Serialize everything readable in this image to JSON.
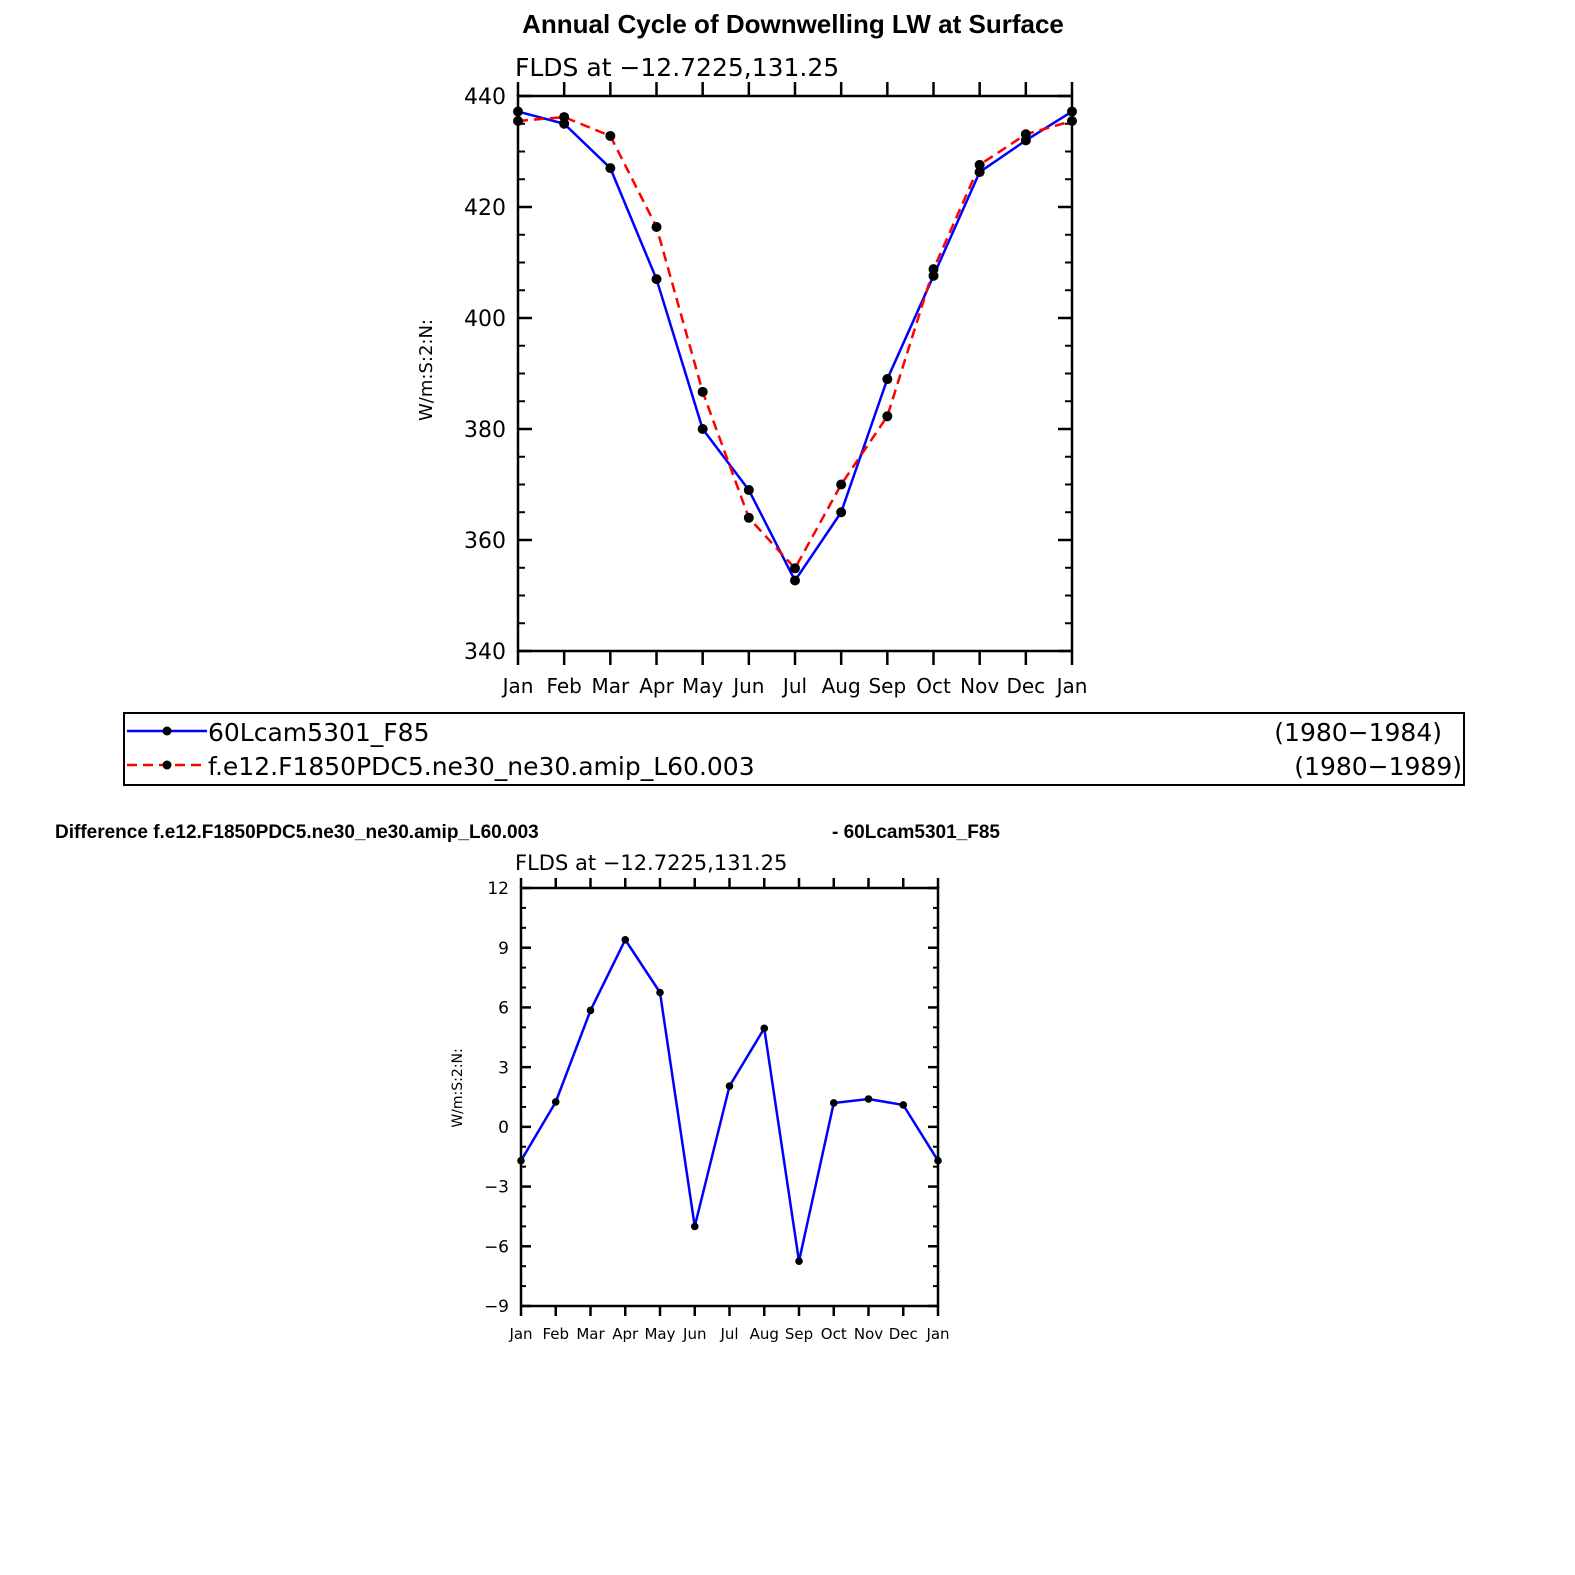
{
  "figure": {
    "title": "Annual Cycle of Downwelling LW at Surface",
    "diff_title_left": "Difference f.e12.F1850PDC5.ne30_ne30.amip_L60.003",
    "diff_title_right": "- 60Lcam5301_F85"
  },
  "legend": {
    "entries": [
      {
        "name": "60Lcam5301_F85",
        "years": "(1980−1984)",
        "color": "#0000ff",
        "style": "solid"
      },
      {
        "name": "f.e12.F1850PDC5.ne30_ne30.amip_L60.003",
        "years": "(1980−1989)",
        "color": "#ff0000",
        "style": "dashed"
      }
    ]
  },
  "chart_data": [
    {
      "type": "line",
      "title": "Annual Cycle of Downwelling LW at Surface",
      "subtitle": "FLDS at −12.7225,131.25",
      "xlabel": "",
      "ylabel": "W/m:S:2:N:",
      "categories": [
        "Jan",
        "Feb",
        "Mar",
        "Apr",
        "May",
        "Jun",
        "Jul",
        "Aug",
        "Sep",
        "Oct",
        "Nov",
        "Dec",
        "Jan"
      ],
      "ylim": [
        340,
        440
      ],
      "yticks": [
        "340",
        "360",
        "380",
        "400",
        "420",
        "440"
      ],
      "series": [
        {
          "name": "60Lcam5301_F85",
          "color": "#0000ff",
          "dash": false,
          "values": [
            437.2,
            435.0,
            427.0,
            407.0,
            380.0,
            369.0,
            352.7,
            365.0,
            389.0,
            407.6,
            426.3,
            432.0,
            437.2
          ]
        },
        {
          "name": "f.e12.F1850PDC5.ne30_ne30.amip_L60.003",
          "color": "#ff0000",
          "dash": true,
          "values": [
            435.5,
            436.2,
            432.8,
            416.4,
            386.7,
            364.0,
            354.9,
            370.0,
            382.3,
            408.8,
            427.6,
            433.1,
            435.5
          ]
        }
      ]
    },
    {
      "type": "line",
      "subtitle": "FLDS at −12.7225,131.25",
      "xlabel": "",
      "ylabel": "W/m:S:2:N:",
      "categories": [
        "Jan",
        "Feb",
        "Mar",
        "Apr",
        "May",
        "Jun",
        "Jul",
        "Aug",
        "Sep",
        "Oct",
        "Nov",
        "Dec",
        "Jan"
      ],
      "ylim": [
        -9,
        12
      ],
      "yticks": [
        "−9",
        "−6",
        "−3",
        "0",
        "3",
        "6",
        "9",
        "12"
      ],
      "series": [
        {
          "name": "",
          "color": "#0000ff",
          "dash": false,
          "values": [
            -1.7,
            1.25,
            5.85,
            9.4,
            6.75,
            -5.0,
            2.05,
            4.95,
            -6.75,
            1.2,
            1.4,
            1.1,
            -1.7
          ]
        }
      ]
    }
  ]
}
